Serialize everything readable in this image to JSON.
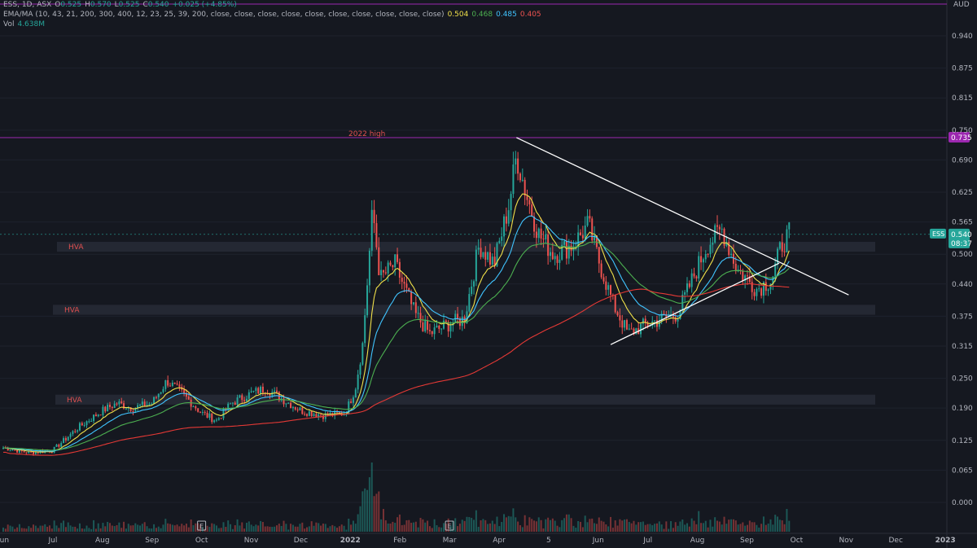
{
  "legend": {
    "symbol": "ESS, 1D, ASX",
    "open_label": "O",
    "open": "0.525",
    "high_label": "H",
    "high": "0.570",
    "low_label": "L",
    "low": "0.525",
    "close_label": "C",
    "close": "0.540",
    "change": "+0.025 (+4.85%)",
    "ema_label": "EMA/MA (10, 43, 21, 200, 300, 400, 12, 23, 25, 39, 200, close, close, close, close, close, close, close, close, close, close)",
    "ema_values": [
      "0.504",
      "0.468",
      "0.485",
      "0.405"
    ],
    "vol_label": "Vol",
    "vol_value": "4.638M"
  },
  "colors": {
    "background": "#151820",
    "up": "#26a69a",
    "down": "#ef5350",
    "ema_fast": "#f0e04a",
    "ema_mid": "#40c4ff",
    "ema_slow": "#4caf50",
    "ma_long": "#e53935",
    "trendline": "#ffffff",
    "high_line": "#9c27b0",
    "hva_zone": "#2a2e39"
  },
  "chart_data": {
    "type": "candlestick",
    "currency": "AUD",
    "last_price": "0.540",
    "countdown": "08:37",
    "ticker_tag": "ESS",
    "high_2022_label": "2022 high",
    "high_2022_value": 0.735,
    "y_ticks": [
      0.94,
      0.875,
      0.815,
      0.75,
      0.69,
      0.625,
      0.565,
      0.5,
      0.44,
      0.375,
      0.315,
      0.25,
      0.19,
      0.125,
      0.065,
      0.0
    ],
    "y_tick_labels": [
      "0.940",
      "0.875",
      "0.815",
      "0.750",
      "0.690",
      "0.625",
      "0.565",
      "0.500",
      "0.440",
      "0.375",
      "0.315",
      "0.250",
      "0.190",
      "0.125",
      "0.065",
      "0.000"
    ],
    "x_ticks": [
      "Jun",
      "Jul",
      "Aug",
      "Sep",
      "Oct",
      "Nov",
      "Dec",
      "2022",
      "Feb",
      "Mar",
      "Apr",
      "5",
      "Jun",
      "Jul",
      "Aug",
      "Sep",
      "Oct",
      "Nov",
      "Dec",
      "2023"
    ],
    "x_tick_month_index": [
      0,
      1,
      2,
      3,
      4,
      5,
      6,
      7,
      8,
      9,
      10,
      11,
      12,
      13,
      14,
      15,
      16,
      17,
      18,
      19
    ],
    "hva_zones": [
      {
        "label": "HVA",
        "low": 0.505,
        "high": 0.525
      },
      {
        "label": "HVA",
        "low": 0.378,
        "high": 0.398
      },
      {
        "label": "HVA",
        "low": 0.197,
        "high": 0.217
      }
    ],
    "triangle": {
      "upper": {
        "from": {
          "month": 10.35,
          "price": 0.735
        },
        "to": {
          "month": 17.05,
          "price": 0.418
        }
      },
      "lower": {
        "from": {
          "month": 12.25,
          "price": 0.318
        },
        "to": {
          "month": 15.65,
          "price": 0.482
        }
      }
    },
    "earnings_markers": [
      {
        "label": "E",
        "month": 4.0
      },
      {
        "label": "E",
        "month": 9.0
      }
    ],
    "price_keypoints": [
      [
        0,
        0.11
      ],
      [
        0.5,
        0.1
      ],
      [
        1,
        0.105
      ],
      [
        1.5,
        0.15
      ],
      [
        2.0,
        0.185
      ],
      [
        2.3,
        0.2
      ],
      [
        2.6,
        0.19
      ],
      [
        3.0,
        0.2
      ],
      [
        3.3,
        0.245
      ],
      [
        3.6,
        0.22
      ],
      [
        4.0,
        0.18
      ],
      [
        4.3,
        0.165
      ],
      [
        4.6,
        0.2
      ],
      [
        5.0,
        0.22
      ],
      [
        5.3,
        0.23
      ],
      [
        5.6,
        0.21
      ],
      [
        6.0,
        0.185
      ],
      [
        6.5,
        0.175
      ],
      [
        6.9,
        0.18
      ],
      [
        7.1,
        0.23
      ],
      [
        7.25,
        0.32
      ],
      [
        7.45,
        0.59
      ],
      [
        7.6,
        0.45
      ],
      [
        7.9,
        0.48
      ],
      [
        8.3,
        0.38
      ],
      [
        8.6,
        0.34
      ],
      [
        9.0,
        0.36
      ],
      [
        9.3,
        0.37
      ],
      [
        9.6,
        0.52
      ],
      [
        9.9,
        0.48
      ],
      [
        10.2,
        0.6
      ],
      [
        10.35,
        0.7
      ],
      [
        10.55,
        0.62
      ],
      [
        10.8,
        0.54
      ],
      [
        11.1,
        0.5
      ],
      [
        11.5,
        0.52
      ],
      [
        11.8,
        0.56
      ],
      [
        12.0,
        0.49
      ],
      [
        12.3,
        0.4
      ],
      [
        12.6,
        0.34
      ],
      [
        13.0,
        0.36
      ],
      [
        13.3,
        0.37
      ],
      [
        13.6,
        0.38
      ],
      [
        13.9,
        0.45
      ],
      [
        14.2,
        0.52
      ],
      [
        14.5,
        0.55
      ],
      [
        14.8,
        0.47
      ],
      [
        15.2,
        0.43
      ],
      [
        15.5,
        0.45
      ],
      [
        15.7,
        0.52
      ],
      [
        15.85,
        0.54
      ]
    ]
  }
}
